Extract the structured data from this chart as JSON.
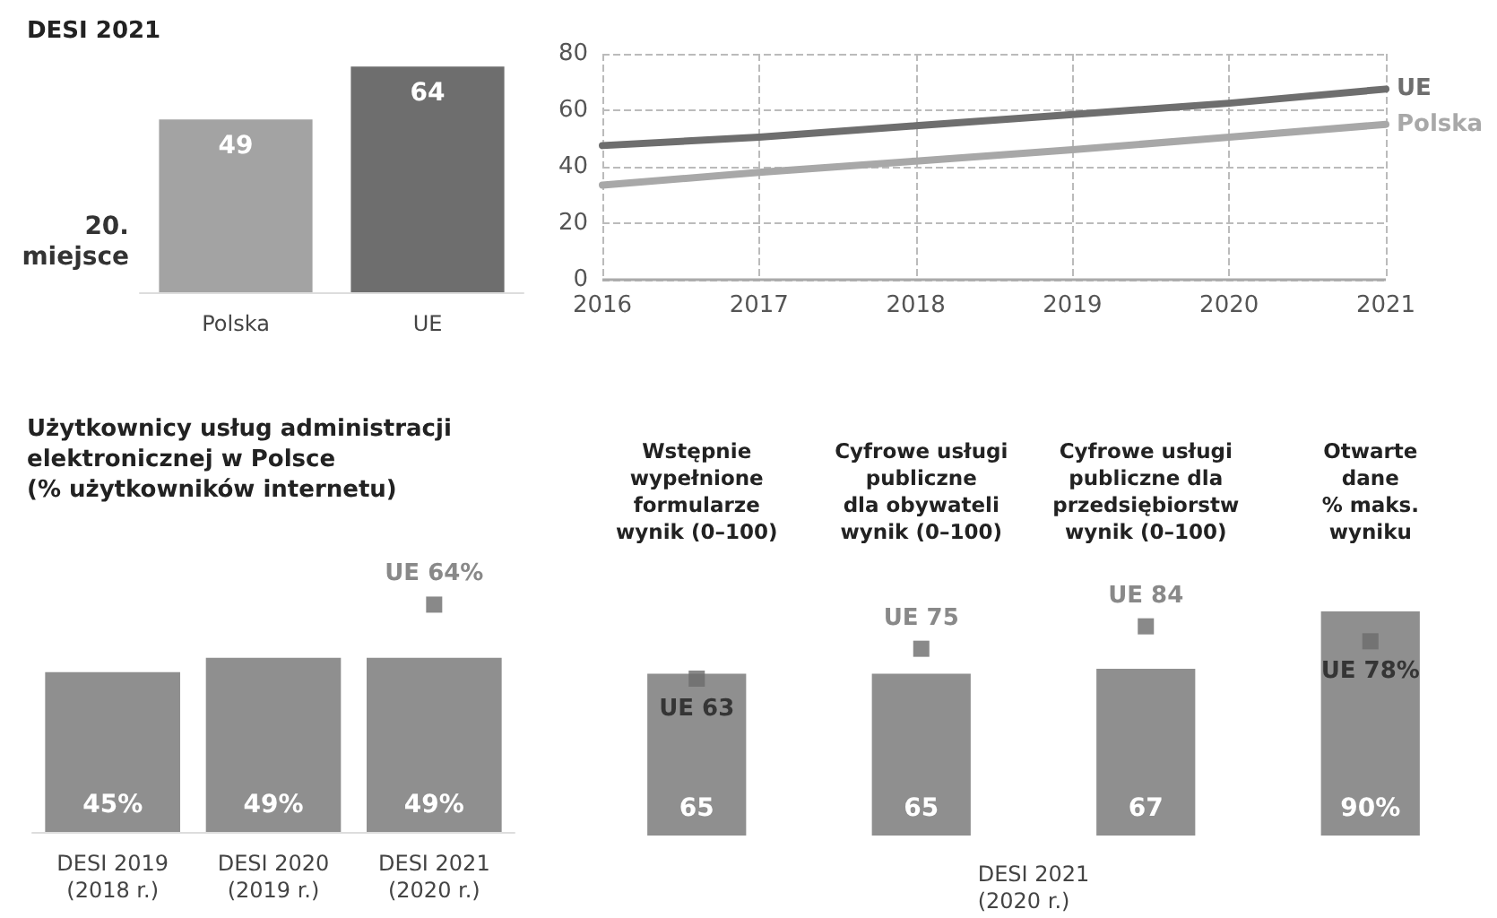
{
  "chart_data": [
    {
      "type": "bar",
      "title": "DESI 2021",
      "categories": [
        "Polska",
        "UE"
      ],
      "values": [
        49,
        64
      ],
      "colors": [
        "#a3a3a3",
        "#6e6e6e"
      ],
      "data_labels": true,
      "annotations": [
        "20.\nmiejsce"
      ]
    },
    {
      "type": "line",
      "x": [
        2016,
        2017,
        2018,
        2019,
        2020,
        2021
      ],
      "xlim": [
        2016,
        2021
      ],
      "xticks": [
        2016,
        2017,
        2018,
        2019,
        2020,
        2021
      ],
      "ylim": [
        0,
        80
      ],
      "yticks": [
        0,
        20,
        40,
        60,
        80
      ],
      "grid": true,
      "marker": "none",
      "line_style": "solid",
      "series": [
        {
          "name": "UE",
          "color": "#6e6e6e",
          "values": [
            47.5,
            50.5,
            54.5,
            58.5,
            62.5,
            67.5
          ]
        },
        {
          "name": "Polska",
          "color": "#a8a8a8",
          "values": [
            33.5,
            38,
            42,
            46,
            50.5,
            55
          ]
        }
      ]
    },
    {
      "type": "bar",
      "title": "Użytkownicy usług administracji\nelektronicznej w Polsce\n(% użytkowników internetu)",
      "categories": [
        "DESI 2019\n(2018 r.)",
        "DESI 2020\n(2019 r.)",
        "DESI 2021\n(2020 r.)"
      ],
      "series": [
        {
          "type": "bar",
          "color": "#8f8f8f",
          "values": [
            45,
            49,
            49
          ],
          "value_labels": [
            "45%",
            "49%",
            "49%"
          ]
        },
        {
          "type": "scatter",
          "color": "#6b6b6b",
          "marker": "square",
          "values": [
            null,
            null,
            64
          ],
          "value_labels": [
            null,
            null,
            "UE 64%"
          ]
        }
      ]
    },
    {
      "type": "bar",
      "xlabel": "DESI 2021\n(2020 r.)",
      "categories": [
        "Wstępnie\nwypełnione\nformularze\nwynik (0–100)",
        "Cyfrowe usługi\npubliczne\ndla obywateli\nwynik (0–100)",
        "Cyfrowe usługi\npubliczne dla\nprzedsiębiorstw\nwynik (0–100)",
        "Otwarte\ndane\n% maks.\nwyniku"
      ],
      "series": [
        {
          "type": "bar",
          "color": "#8f8f8f",
          "values": [
            65,
            65,
            67,
            90
          ],
          "value_labels": [
            "65",
            "65",
            "67",
            "90%"
          ]
        },
        {
          "type": "scatter",
          "color": "#6b6b6b",
          "marker": "square",
          "values": [
            63,
            75,
            84,
            78
          ],
          "value_labels": [
            "UE 63",
            "UE 75",
            "UE 84",
            "UE 78%"
          ]
        }
      ]
    }
  ]
}
